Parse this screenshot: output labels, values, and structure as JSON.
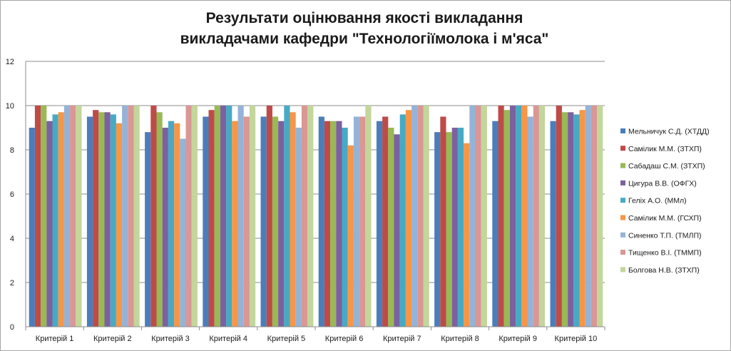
{
  "chart_data": {
    "type": "bar",
    "title": [
      "Результати оцінювання якості викладання",
      "викладачами кафедри \"Технологіїмолока і м'яса\""
    ],
    "xlabel": "",
    "ylabel": "",
    "ylim": [
      0,
      12
    ],
    "yticks": [
      "0",
      "2",
      "4",
      "6",
      "8",
      "10",
      "12"
    ],
    "grid": true,
    "legend_position": "right",
    "categories": [
      "Критерій 1",
      "Критерій 2",
      "Критерій 3",
      "Критерій 4",
      "Критерій 5",
      "Критерій 6",
      "Критерій 7",
      "Критерій 8",
      "Критерій 9",
      "Критерій 10"
    ],
    "series": [
      {
        "name": "Мельничук  С.Д. (ХТДД)",
        "color": "#4a7ebb",
        "values": [
          9.0,
          9.5,
          8.8,
          9.5,
          9.5,
          9.5,
          9.3,
          8.8,
          9.3,
          9.3
        ]
      },
      {
        "name": "Самілик М.М. (ЗТХП)",
        "color": "#be4b48",
        "values": [
          10.0,
          9.8,
          10.0,
          9.8,
          10.0,
          9.3,
          9.5,
          9.5,
          10.0,
          10.0
        ]
      },
      {
        "name": "Сабадаш С.М. (ЗТХП)",
        "color": "#98b954",
        "values": [
          10.0,
          9.7,
          9.7,
          10.0,
          9.5,
          9.3,
          9.0,
          8.8,
          9.8,
          9.7
        ]
      },
      {
        "name": "Цигура В.В. (ОФГХ)",
        "color": "#7d60a0",
        "values": [
          9.3,
          9.7,
          9.0,
          10.0,
          9.3,
          9.3,
          8.7,
          9.0,
          10.0,
          9.7
        ]
      },
      {
        "name": "Геліх А.О. (ММл)",
        "color": "#46aac5",
        "values": [
          9.6,
          9.6,
          9.3,
          10.0,
          10.0,
          9.0,
          9.6,
          9.0,
          10.0,
          9.6
        ]
      },
      {
        "name": "Самілик М.М. (ГСХП)",
        "color": "#f79646",
        "values": [
          9.7,
          9.2,
          9.2,
          9.3,
          9.7,
          8.2,
          9.8,
          8.3,
          10.0,
          9.8
        ]
      },
      {
        "name": "Синенко Т.П. (ТМЛП)",
        "color": "#95b3d7",
        "values": [
          10.0,
          10.0,
          8.5,
          10.0,
          9.0,
          9.5,
          10.0,
          10.0,
          9.5,
          10.0
        ]
      },
      {
        "name": "Тищенко  В.І. (ТММП)",
        "color": "#d99795",
        "values": [
          10.0,
          10.0,
          10.0,
          9.5,
          10.0,
          9.5,
          10.0,
          10.0,
          10.0,
          10.0
        ]
      },
      {
        "name": "Болгова Н.В. (ЗТХП)",
        "color": "#c3d69b",
        "values": [
          10.0,
          10.0,
          10.0,
          10.0,
          10.0,
          10.0,
          10.0,
          10.0,
          10.0,
          10.0
        ]
      }
    ]
  }
}
